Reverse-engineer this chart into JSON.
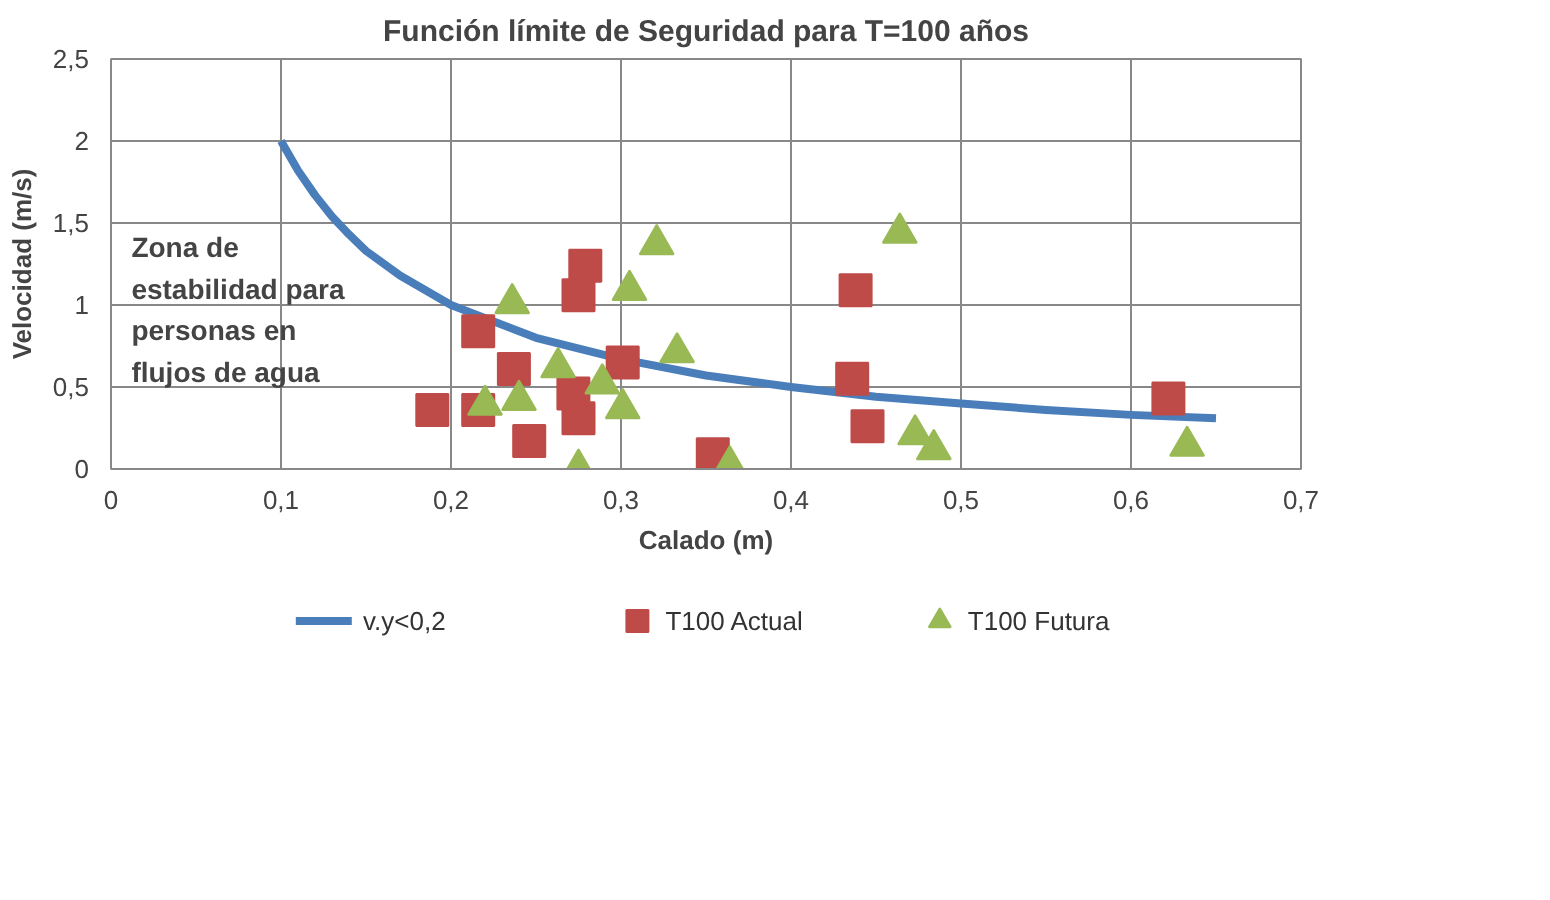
{
  "chart_data": {
    "type": "scatter",
    "title": "Función límite de Seguridad para T=100 años",
    "xlabel": "Calado (m)",
    "ylabel": "Velocidad (m/s)",
    "xlim": [
      0,
      0.7
    ],
    "xticks": [
      0,
      {
        "value": 0.1,
        "label": "0,1"
      },
      {
        "value": 0.2,
        "label": "0,2"
      },
      {
        "value": 0.3,
        "label": "0,3"
      },
      {
        "value": 0.4,
        "label": "0,4"
      },
      {
        "value": 0.5,
        "label": "0,5"
      },
      {
        "value": 0.6,
        "label": "0,6"
      },
      {
        "value": 0.7,
        "label": "0,7"
      }
    ],
    "ylim": [
      0,
      2.5
    ],
    "yticks": [
      0,
      {
        "value": 0.5,
        "label": "0,5"
      },
      1,
      {
        "value": 1.5,
        "label": "1,5"
      },
      2,
      {
        "value": 2.5,
        "label": "2,5"
      }
    ],
    "grid": true,
    "legend": "bottom",
    "annotations": [
      "Zona de\nestabilidad para\npersonas en\nflujos de agua"
    ],
    "series": [
      {
        "name": "v.y<0,2",
        "type": "line",
        "marker": "none",
        "color": "#4a7ebb",
        "x": [
          0.1,
          0.11,
          0.12,
          0.13,
          0.14,
          0.15,
          0.17,
          0.2,
          0.25,
          0.3,
          0.35,
          0.4,
          0.45,
          0.5,
          0.55,
          0.6,
          0.65
        ],
        "values": [
          2,
          1.82,
          1.67,
          1.54,
          1.43,
          1.33,
          1.18,
          1,
          0.8,
          0.67,
          0.57,
          0.5,
          0.44,
          0.4,
          0.36,
          0.33,
          0.31
        ]
      },
      {
        "name": "T100 Actual",
        "type": "scatter",
        "marker": "square",
        "color": "#be4b48",
        "x": [
          0.189,
          0.216,
          0.216,
          0.237,
          0.246,
          0.279,
          0.275,
          0.272,
          0.275,
          0.301,
          0.354,
          0.438,
          0.436,
          0.445,
          0.622
        ],
        "values": [
          0.36,
          0.36,
          0.84,
          0.61,
          0.17,
          1.24,
          1.06,
          0.46,
          0.31,
          0.65,
          0.09,
          1.09,
          0.55,
          0.26,
          0.43
        ]
      },
      {
        "name": "T100 Futura",
        "type": "scatter",
        "marker": "triangle",
        "color": "#98b954",
        "x": [
          0.22,
          0.24,
          0.236,
          0.263,
          0.275,
          0.289,
          0.301,
          0.305,
          0.321,
          0.333,
          0.364,
          0.464,
          0.473,
          0.484,
          0.633
        ],
        "values": [
          0.39,
          0.42,
          1.01,
          0.62,
          0.0,
          0.52,
          0.37,
          1.09,
          1.37,
          0.71,
          0.02,
          1.44,
          0.21,
          0.12,
          0.14
        ]
      }
    ]
  }
}
